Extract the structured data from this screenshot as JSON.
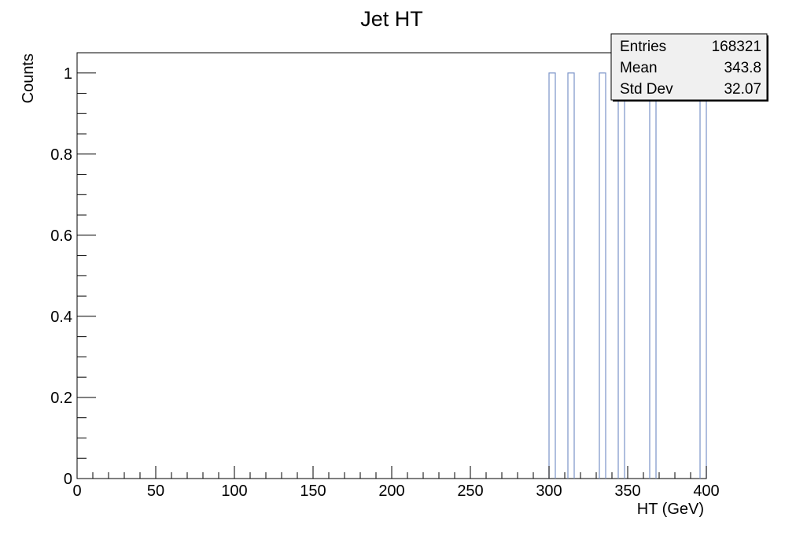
{
  "chart_data": {
    "type": "bar",
    "title": "Jet HT",
    "xlabel": "HT (GeV)",
    "ylabel": "Counts",
    "xlim": [
      0,
      400
    ],
    "ylim": [
      0,
      1.05
    ],
    "xticks": [
      0,
      50,
      100,
      150,
      200,
      250,
      300,
      350,
      400
    ],
    "xtick_labels": [
      "0",
      "50",
      "100",
      "150",
      "200",
      "250",
      "300",
      "350",
      "400"
    ],
    "yticks": [
      0,
      0.2,
      0.4,
      0.6,
      0.8,
      1
    ],
    "ytick_labels": [
      "0",
      "0.2",
      "0.4",
      "0.6",
      "0.8",
      "1"
    ],
    "bin_width": 4,
    "series": [
      {
        "color": "#7a93c7",
        "bins": [
          {
            "x_low": 300,
            "x_high": 304,
            "value": 1
          },
          {
            "x_low": 312,
            "x_high": 316,
            "value": 1
          },
          {
            "x_low": 332,
            "x_high": 336,
            "value": 1
          },
          {
            "x_low": 344,
            "x_high": 348,
            "value": 1
          },
          {
            "x_low": 364,
            "x_high": 368,
            "value": 1
          },
          {
            "x_low": 396,
            "x_high": 400,
            "value": 1
          }
        ]
      }
    ],
    "grid": false,
    "stats_box": {
      "placement": "top-right",
      "rows": [
        {
          "label": "Entries",
          "value": "168321"
        },
        {
          "label": "Mean",
          "value": "343.8"
        },
        {
          "label": "Std Dev",
          "value": "32.07"
        }
      ]
    }
  }
}
